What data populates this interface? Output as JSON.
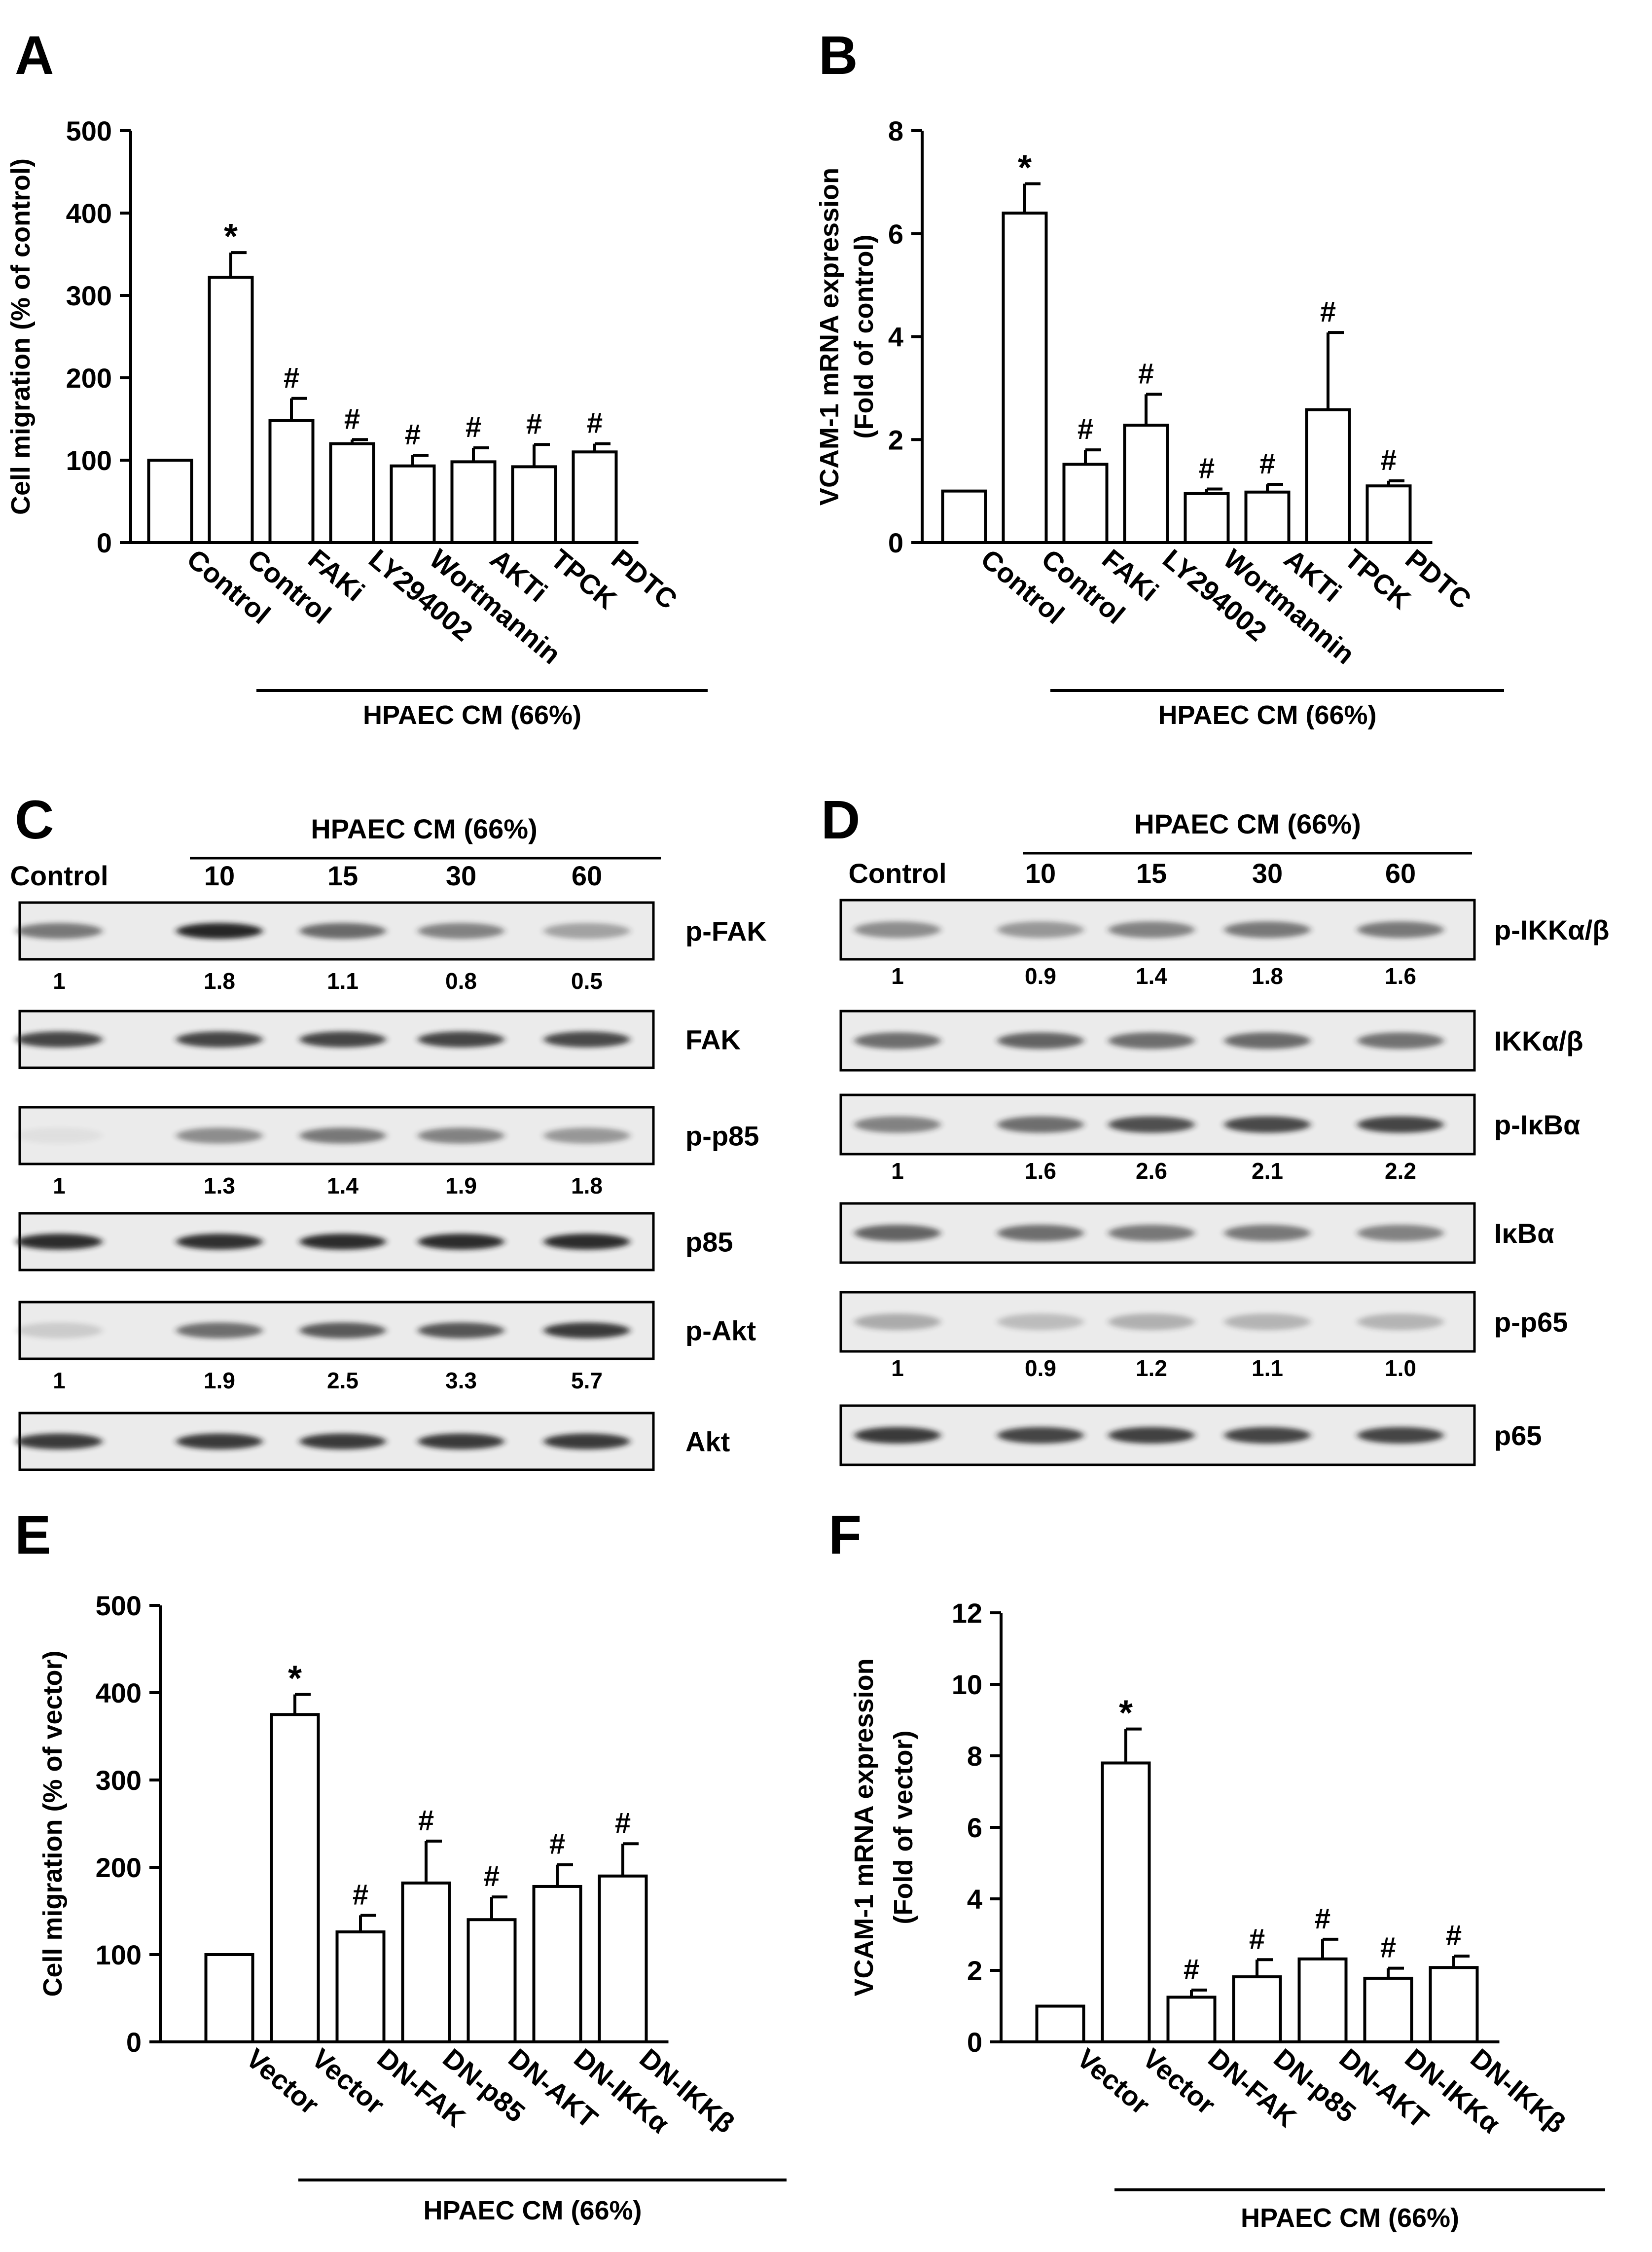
{
  "colors": {
    "ink": "#000000",
    "bar_fill": "#ffffff",
    "band": "#1e1e1e",
    "blot_bg": "#ebebeb"
  },
  "treatment_label": "HPAEC CM (66%)",
  "chart_data": [
    {
      "panel": "A",
      "type": "bar",
      "ylabel": "Cell migration (% of control)",
      "ylim": [
        0,
        500
      ],
      "yticks": [
        "0",
        "100",
        "200",
        "300",
        "400",
        "500"
      ],
      "categories": [
        "Control",
        "Control",
        "FAKi",
        "LY294002",
        "Wortmannin",
        "AKTi",
        "TPCK",
        "PDTC"
      ],
      "values": [
        100,
        322,
        148,
        120,
        93,
        98,
        92,
        110
      ],
      "errors": [
        0,
        30,
        27,
        5,
        13,
        17,
        27,
        10
      ],
      "markers": [
        "",
        "*",
        "#",
        "#",
        "#",
        "#",
        "#",
        "#"
      ],
      "group_label": "HPAEC CM (66%)",
      "group_start": 1,
      "grid": false
    },
    {
      "panel": "B",
      "type": "bar",
      "ylabel": "VCAM-1 mRNA expression",
      "ylabel2": "(Fold of control)",
      "ylim": [
        0,
        8
      ],
      "yticks": [
        "0",
        "2",
        "4",
        "6",
        "8"
      ],
      "categories": [
        "Control",
        "Control",
        "FAKi",
        "LY294002",
        "Wortmannin",
        "AKTi",
        "TPCK",
        "PDTC"
      ],
      "values": [
        1.0,
        6.4,
        1.52,
        2.28,
        0.95,
        0.98,
        2.58,
        1.1
      ],
      "errors": [
        0,
        0.57,
        0.28,
        0.6,
        0.09,
        0.15,
        1.5,
        0.1
      ],
      "markers": [
        "",
        "*",
        "#",
        "#",
        "#",
        "#",
        "#",
        "#"
      ],
      "group_label": "HPAEC CM (66%)",
      "group_start": 1,
      "grid": false
    },
    {
      "panel": "E",
      "type": "bar",
      "ylabel": "Cell migration (% of vector)",
      "ylim": [
        0,
        500
      ],
      "yticks": [
        "0",
        "100",
        "200",
        "300",
        "400",
        "500"
      ],
      "categories": [
        "Vector",
        "Vector",
        "DN-FAK",
        "DN-p85",
        "DN-AKT",
        "DN-IKKα",
        "DN-IKKβ"
      ],
      "values": [
        100,
        375,
        126,
        182,
        140,
        178,
        190
      ],
      "errors": [
        0,
        23,
        19,
        48,
        26,
        25,
        37
      ],
      "markers": [
        "",
        "*",
        "#",
        "#",
        "#",
        "#",
        "#"
      ],
      "group_label": "HPAEC CM (66%)",
      "group_start": 1,
      "grid": false
    },
    {
      "panel": "F",
      "type": "bar",
      "ylabel": "VCAM-1 mRNA expression",
      "ylabel2": "(Fold of vector)",
      "ylim": [
        0,
        12
      ],
      "yticks": [
        "0",
        "2",
        "4",
        "6",
        "8",
        "10",
        "12"
      ],
      "categories": [
        "Vector",
        "Vector",
        "DN-FAK",
        "DN-p85",
        "DN-AKT",
        "DN-IKKα",
        "DN-IKKβ"
      ],
      "values": [
        1.0,
        7.8,
        1.25,
        1.82,
        2.32,
        1.78,
        2.08
      ],
      "errors": [
        0,
        0.95,
        0.2,
        0.48,
        0.55,
        0.28,
        0.32
      ],
      "markers": [
        "",
        "*",
        "#",
        "#",
        "#",
        "#",
        "#"
      ],
      "group_label": "HPAEC CM (66%)",
      "group_start": 1,
      "grid": false
    }
  ],
  "blots": [
    {
      "panel": "C",
      "header": "HPAEC CM (66%)",
      "lanes": [
        "Control",
        "10",
        "15",
        "30",
        "60"
      ],
      "rows": [
        {
          "label": "p-FAK",
          "intensity": [
            0.55,
            0.95,
            0.62,
            0.5,
            0.35
          ],
          "quant": [
            "1",
            "1.8",
            "1.1",
            "0.8",
            "0.5"
          ]
        },
        {
          "label": "FAK",
          "intensity": [
            0.8,
            0.8,
            0.8,
            0.8,
            0.78
          ],
          "quant": []
        },
        {
          "label": "p-p85",
          "intensity": [
            0.05,
            0.45,
            0.55,
            0.5,
            0.4
          ],
          "quant": [
            "1",
            "1.3",
            "1.4",
            "1.9",
            "1.8"
          ]
        },
        {
          "label": "p85",
          "intensity": [
            0.92,
            0.9,
            0.92,
            0.92,
            0.92
          ],
          "quant": []
        },
        {
          "label": "p-Akt",
          "intensity": [
            0.15,
            0.6,
            0.7,
            0.72,
            0.85
          ],
          "quant": [
            "1",
            "1.9",
            "2.5",
            "3.3",
            "5.7"
          ]
        },
        {
          "label": "Akt",
          "intensity": [
            0.85,
            0.85,
            0.85,
            0.85,
            0.85
          ],
          "quant": []
        }
      ]
    },
    {
      "panel": "D",
      "header": "HPAEC CM (66%)",
      "lanes": [
        "Control",
        "10",
        "15",
        "30",
        "60"
      ],
      "rows": [
        {
          "label": "p-IKKα/β",
          "intensity": [
            0.45,
            0.4,
            0.5,
            0.55,
            0.55
          ],
          "quant": [
            "1",
            "0.9",
            "1.4",
            "1.8",
            "1.6"
          ]
        },
        {
          "label": "IKKα/β",
          "intensity": [
            0.6,
            0.65,
            0.6,
            0.62,
            0.58
          ],
          "quant": []
        },
        {
          "label": "p-IκBα",
          "intensity": [
            0.5,
            0.6,
            0.75,
            0.78,
            0.8
          ],
          "quant": [
            "1",
            "1.6",
            "2.6",
            "2.1",
            "2.2"
          ]
        },
        {
          "label": "IκBα",
          "intensity": [
            0.65,
            0.6,
            0.55,
            0.55,
            0.5
          ],
          "quant": []
        },
        {
          "label": "p-p65",
          "intensity": [
            0.3,
            0.22,
            0.28,
            0.26,
            0.26
          ],
          "quant": [
            "1",
            "0.9",
            "1.2",
            "1.1",
            "1.0"
          ]
        },
        {
          "label": "p65",
          "intensity": [
            0.85,
            0.8,
            0.82,
            0.8,
            0.8
          ],
          "quant": []
        }
      ]
    }
  ]
}
